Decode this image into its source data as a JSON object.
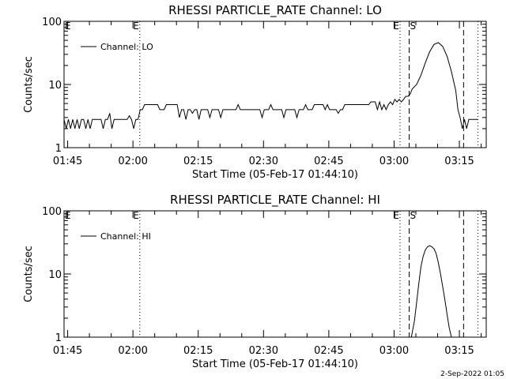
{
  "chart_data": [
    {
      "type": "line",
      "title": "RHESSI PARTICLE_RATE Channel: LO",
      "xlabel": "Start Time (05-Feb-17 01:44:10)",
      "ylabel": "Counts/sec",
      "x_unit": "minutes after 01:44:10",
      "y_scale": "log",
      "ylim": [
        1,
        100
      ],
      "y_ticks": [
        {
          "value": 1,
          "label": "1"
        },
        {
          "value": 10,
          "label": "10"
        },
        {
          "value": 100,
          "label": "100"
        }
      ],
      "xlim": [
        0,
        97
      ],
      "x_ticks": [
        {
          "value": 0.83,
          "label": "01:45"
        },
        {
          "value": 15.83,
          "label": "02:00"
        },
        {
          "value": 30.83,
          "label": "02:15"
        },
        {
          "value": 45.83,
          "label": "02:30"
        },
        {
          "value": 60.83,
          "label": "02:45"
        },
        {
          "value": 75.83,
          "label": "03:00"
        },
        {
          "value": 90.83,
          "label": "03:15"
        }
      ],
      "grid": false,
      "legend": {
        "position": "top-left",
        "entries": [
          "Channel: LO"
        ]
      },
      "markers": [
        {
          "x": 17.4,
          "style": "dotted",
          "label": "E"
        },
        {
          "x": 77.2,
          "style": "dotted",
          "label": "E"
        },
        {
          "x": 79.3,
          "style": "dashed",
          "label": "S"
        },
        {
          "x": 91.8,
          "style": "dashed",
          "label": ""
        },
        {
          "x": 95.1,
          "style": "dotted",
          "label": ""
        }
      ],
      "series": [
        {
          "name": "Channel: LO",
          "x": [
            0,
            0.5,
            1,
            1.5,
            2,
            2.5,
            3,
            3.5,
            4,
            4.5,
            5,
            5.5,
            6,
            6.5,
            7,
            7.5,
            8,
            8.5,
            9,
            9.5,
            10,
            10.5,
            11,
            11.5,
            12,
            12.5,
            13,
            13.5,
            14,
            14.5,
            15,
            15.5,
            16,
            16.5,
            17,
            17.5,
            18,
            18.5,
            19,
            19.5,
            20,
            20.5,
            21,
            21.5,
            22,
            22.5,
            23,
            23.5,
            24,
            24.5,
            25,
            25.5,
            26,
            26.5,
            27,
            27.5,
            28,
            28.5,
            29,
            29.5,
            30,
            30.5,
            31,
            31.5,
            32,
            32.5,
            33,
            33.5,
            34,
            34.5,
            35,
            35.5,
            36,
            36.5,
            37,
            37.5,
            38,
            38.5,
            39,
            39.5,
            40,
            40.5,
            41,
            41.5,
            42,
            42.5,
            43,
            43.5,
            44,
            44.5,
            45,
            45.5,
            46,
            46.5,
            47,
            47.5,
            48,
            48.5,
            49,
            49.5,
            50,
            50.5,
            51,
            51.5,
            52,
            52.5,
            53,
            53.5,
            54,
            54.5,
            55,
            55.5,
            56,
            56.5,
            57,
            57.5,
            58,
            58.5,
            59,
            59.5,
            60,
            60.5,
            61,
            61.5,
            62,
            62.5,
            63,
            63.5,
            64,
            64.5,
            65,
            65.5,
            66,
            66.5,
            67,
            67.5,
            68,
            68.5,
            69,
            69.5,
            70,
            70.5,
            71,
            71.5,
            72,
            72.5,
            73,
            73.5,
            74,
            74.5,
            75,
            75.5,
            76,
            76.5,
            77,
            77.5,
            78,
            78.5,
            79,
            79.5,
            80,
            81,
            82,
            83,
            84,
            85,
            86,
            87,
            88,
            89,
            90,
            90.5,
            91,
            91.5,
            92,
            92.5,
            93,
            93.5,
            94,
            94.5,
            95
          ],
          "y": [
            2.8,
            2,
            2.8,
            2,
            2.8,
            2,
            2.8,
            2,
            2.8,
            2.8,
            2,
            2.8,
            2,
            2.8,
            2.8,
            2.8,
            2.8,
            2.8,
            2,
            2.8,
            2.8,
            3.5,
            2,
            2.8,
            2.8,
            2.8,
            2.8,
            2.8,
            2.8,
            2.8,
            3.2,
            2.8,
            2,
            2.8,
            2.8,
            4,
            4,
            4.8,
            4.8,
            4.8,
            4.8,
            4.8,
            4.8,
            4.8,
            4,
            4,
            4,
            4.8,
            4.8,
            4.8,
            4.8,
            4.8,
            4.8,
            3,
            4,
            4,
            2.8,
            4,
            4,
            3.5,
            4,
            4,
            2.8,
            4,
            4,
            4,
            4,
            3,
            4,
            4,
            4,
            4,
            3,
            4,
            4,
            4,
            4,
            4,
            4,
            4,
            4.8,
            4,
            4,
            4,
            4,
            4,
            4,
            4,
            4,
            4,
            4,
            3,
            4,
            4,
            4,
            4.8,
            4,
            4,
            4,
            4,
            4,
            3,
            4,
            4,
            4,
            4,
            4,
            3,
            4,
            4,
            4,
            4.8,
            4,
            4,
            4,
            4.8,
            4.8,
            4.8,
            4.8,
            4.8,
            4,
            4.8,
            4,
            4,
            4,
            4,
            3.5,
            4,
            4,
            4.8,
            4.8,
            4.8,
            4.8,
            4.8,
            4.8,
            4.8,
            4.8,
            4.8,
            4.8,
            4.8,
            4.8,
            5.3,
            5.3,
            5.3,
            4,
            5.3,
            4,
            4.8,
            4,
            4.8,
            5.3,
            4.8,
            5.8,
            5.3,
            5.8,
            5.3,
            5.8,
            6.5,
            6.5,
            7,
            8.5,
            10,
            14,
            22,
            33,
            43,
            46,
            40,
            28,
            16,
            8,
            4,
            3,
            2,
            2.8,
            2,
            2.8,
            2.8,
            2.8,
            2.8,
            2.8
          ]
        }
      ]
    },
    {
      "type": "line",
      "title": "RHESSI PARTICLE_RATE Channel: HI",
      "xlabel": "Start Time (05-Feb-17 01:44:10)",
      "ylabel": "Counts/sec",
      "x_unit": "minutes after 01:44:10",
      "y_scale": "log",
      "ylim": [
        1,
        100
      ],
      "y_ticks": [
        {
          "value": 1,
          "label": "1"
        },
        {
          "value": 10,
          "label": "10"
        },
        {
          "value": 100,
          "label": "100"
        }
      ],
      "xlim": [
        0,
        97
      ],
      "x_ticks": [
        {
          "value": 0.83,
          "label": "01:45"
        },
        {
          "value": 15.83,
          "label": "02:00"
        },
        {
          "value": 30.83,
          "label": "02:15"
        },
        {
          "value": 45.83,
          "label": "02:30"
        },
        {
          "value": 60.83,
          "label": "02:45"
        },
        {
          "value": 75.83,
          "label": "03:00"
        },
        {
          "value": 90.83,
          "label": "03:15"
        }
      ],
      "grid": false,
      "legend": {
        "position": "top-left",
        "entries": [
          "Channel: HI"
        ]
      },
      "markers": [
        {
          "x": 17.4,
          "style": "dotted",
          "label": "E"
        },
        {
          "x": 77.2,
          "style": "dotted",
          "label": "E"
        },
        {
          "x": 79.3,
          "style": "dashed",
          "label": "S"
        },
        {
          "x": 91.8,
          "style": "dashed",
          "label": ""
        },
        {
          "x": 95.1,
          "style": "dotted",
          "label": ""
        }
      ],
      "series": [
        {
          "name": "Channel: HI",
          "x": [
            79.8,
            80.5,
            81,
            81.5,
            82,
            82.5,
            83,
            83.5,
            84,
            84.5,
            85,
            85.5,
            86,
            86.5,
            87,
            87.5,
            88,
            88.5,
            89
          ],
          "y": [
            1,
            1.8,
            3.5,
            7,
            13,
            19,
            24,
            27,
            28,
            27,
            25,
            21,
            15,
            10,
            6.3,
            3.9,
            2.3,
            1.4,
            1
          ]
        }
      ]
    }
  ],
  "footer": {
    "timestamp": "2-Sep-2022 01:05"
  },
  "style": {
    "line_color": "#000000",
    "background": "#ffffff"
  }
}
